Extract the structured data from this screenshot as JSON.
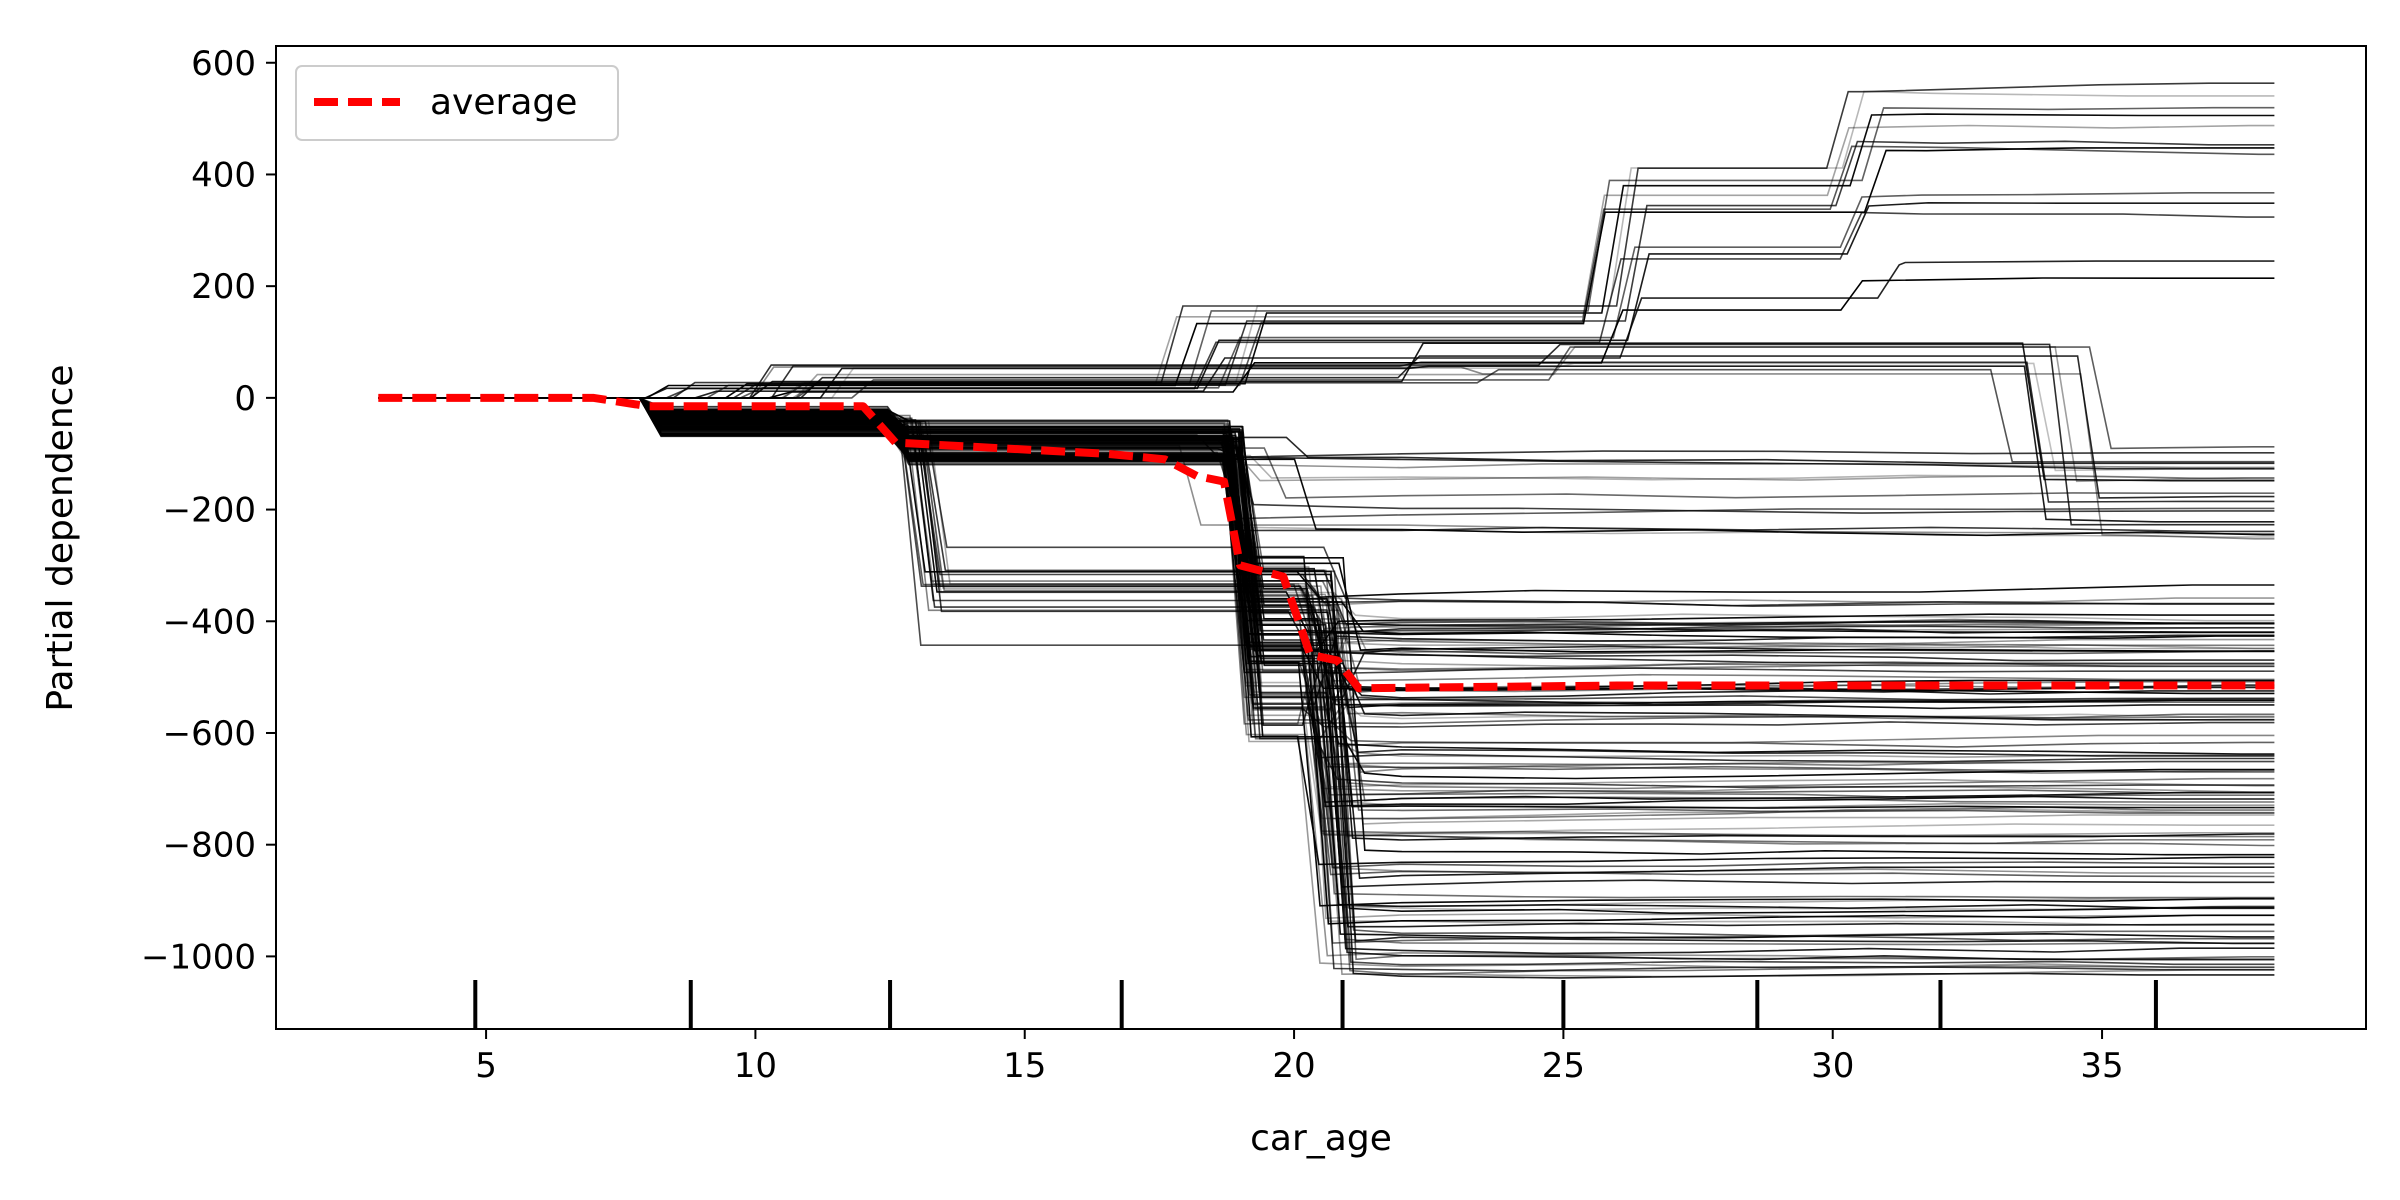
{
  "chart_data": {
    "type": "line",
    "title": "",
    "xlabel": "car_age",
    "ylabel": "Partial dependence",
    "xlim": [
      1.1,
      39.9
    ],
    "ylim": [
      -1130,
      630
    ],
    "xticks": [
      5,
      10,
      15,
      20,
      25,
      30,
      35
    ],
    "yticks": [
      600,
      400,
      200,
      0,
      -200,
      -400,
      -600,
      -800,
      -1000
    ],
    "xtick_labels": [
      "5",
      "10",
      "15",
      "20",
      "25",
      "30",
      "35"
    ],
    "ytick_labels": [
      "600",
      "400",
      "200",
      "0",
      "−200",
      "−400",
      "−600",
      "−800",
      "−1000"
    ],
    "grid": false,
    "legend": {
      "position": "top-left",
      "entries": [
        "average"
      ]
    },
    "rug_x": [
      4.8,
      8.8,
      12.5,
      16.8,
      20.9,
      25.0,
      28.6,
      32.0,
      36.0
    ],
    "average": {
      "name": "average",
      "color": "#ff0000",
      "x": [
        3,
        7,
        8,
        12,
        12.6,
        14.5,
        16.5,
        17.6,
        18.2,
        18.7,
        19.0,
        19.8,
        20.3,
        20.8,
        21.2,
        26,
        38.2
      ],
      "y": [
        0,
        0,
        -15,
        -15,
        -80,
        -90,
        -100,
        -110,
        -140,
        -150,
        -300,
        -320,
        -460,
        -470,
        -520,
        -515,
        -515
      ]
    },
    "ice_curves_shown": 150
  }
}
